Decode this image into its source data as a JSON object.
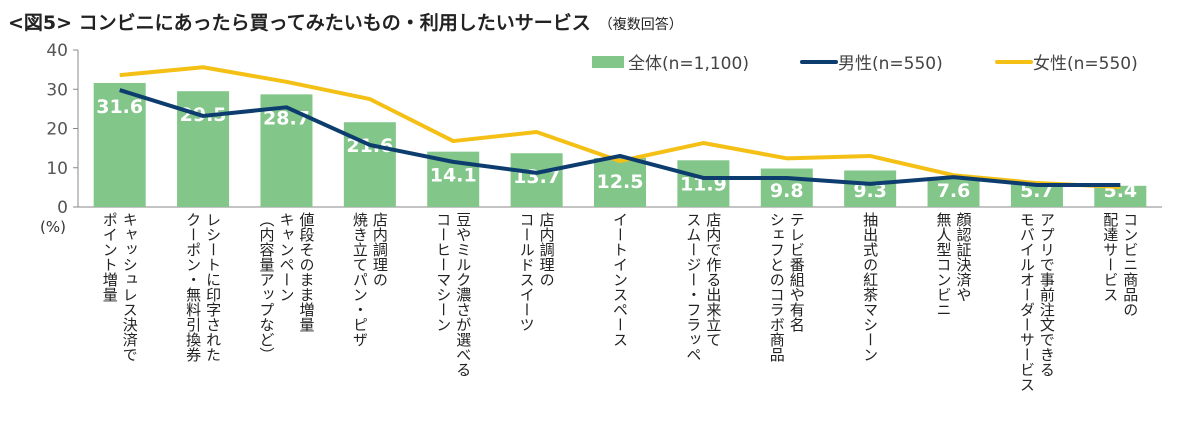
{
  "chart_data": {
    "type": "bar+line",
    "title": "<図5> コンビニにあったら買ってみたいもの・利用したいサービス",
    "subtitle": "（複数回答）",
    "ylabel": "(%)",
    "ylim": [
      0,
      40
    ],
    "yticks": [
      "0",
      "10",
      "20",
      "30",
      "40"
    ],
    "legend_position": "top-right",
    "grid": false,
    "categories": [
      "キャッシュレス決済で\nポイント増量",
      "レシートに印字された\nクーポン・無料引換券",
      "値段そのまま増量\nキャンペーン\n（内容量アップなど）",
      "店内調理の\n焼き立てパン・ピザ",
      "豆やミルク濃さが選べる\nコーヒーマシーン",
      "店内調理の\nコールドスイーツ",
      "イートインスペース",
      "店内で作る出来立て\nスムージー・フラッペ",
      "テレビ番組や有名\nシェフとのコラボ商品",
      "抽出式の紅茶マシーン",
      "顔認証決済や\n無人型コンビニ",
      "アプリで事前注文できる\nモバイルオーダーサービス",
      "コンビニ商品の\n配達サービス"
    ],
    "series": [
      {
        "name": "全体(n=1,100)",
        "type": "bar",
        "color": "#82c68a",
        "values": [
          31.6,
          29.5,
          28.7,
          21.6,
          14.1,
          13.7,
          12.5,
          11.9,
          9.8,
          9.3,
          7.6,
          5.7,
          5.4
        ],
        "labels": [
          "31.6",
          "29.5",
          "28.7",
          "21.6",
          "14.1",
          "13.7",
          "12.5",
          "11.9",
          "9.8",
          "9.3",
          "7.6",
          "5.7",
          "5.4"
        ]
      },
      {
        "name": "男性(n=550)",
        "type": "line",
        "color": "#0d3c6e",
        "values": [
          29.8,
          23.2,
          25.4,
          15.8,
          11.5,
          8.7,
          13.0,
          7.4,
          7.4,
          5.9,
          7.6,
          5.6,
          5.6
        ]
      },
      {
        "name": "女性(n=550)",
        "type": "line",
        "color": "#f5c016",
        "values": [
          33.6,
          35.6,
          31.9,
          27.5,
          16.8,
          19.1,
          11.7,
          16.3,
          12.4,
          13.0,
          8.1,
          6.1,
          5.1
        ]
      }
    ]
  }
}
